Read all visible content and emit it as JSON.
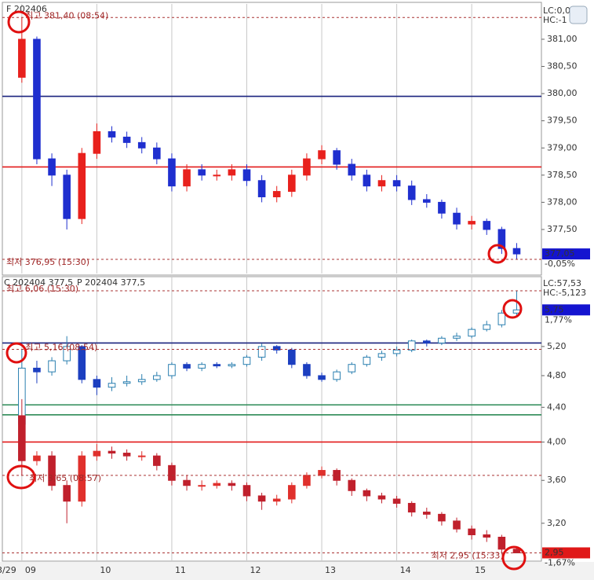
{
  "chart_data": [
    {
      "type": "candlestick",
      "series": [
        {
          "name": "F 202406",
          "color_up": "#e8211d",
          "color_down": "#1f2fcf",
          "open": [
            380.3,
            381.0,
            378.8,
            378.5,
            377.7,
            378.9,
            379.3,
            379.2,
            379.1,
            379.0,
            378.8,
            378.3,
            378.6,
            378.5,
            378.5,
            378.6,
            378.4,
            378.1,
            378.2,
            378.5,
            378.8,
            378.95,
            378.7,
            378.5,
            378.3,
            378.4,
            378.3,
            378.05,
            378.0,
            377.8,
            377.6,
            377.65,
            377.5,
            377.15
          ],
          "high": [
            381.4,
            381.05,
            378.9,
            378.6,
            379.0,
            379.45,
            379.4,
            379.3,
            379.2,
            379.1,
            378.9,
            378.7,
            378.7,
            378.6,
            378.7,
            378.7,
            378.5,
            378.3,
            378.6,
            378.9,
            379.05,
            379.0,
            378.8,
            378.6,
            378.5,
            378.5,
            378.4,
            378.15,
            378.05,
            377.9,
            377.75,
            377.7,
            377.55,
            377.25
          ],
          "low": [
            380.2,
            378.7,
            378.3,
            377.5,
            377.6,
            378.8,
            379.1,
            379.0,
            378.9,
            378.7,
            378.2,
            378.2,
            378.4,
            378.4,
            378.4,
            378.3,
            378.0,
            378.0,
            378.1,
            378.4,
            378.7,
            378.6,
            378.4,
            378.2,
            378.2,
            378.2,
            377.95,
            377.9,
            377.7,
            377.5,
            377.5,
            377.4,
            377.05,
            376.95
          ],
          "values": [
            381.0,
            378.8,
            378.5,
            377.7,
            378.9,
            379.3,
            379.2,
            379.1,
            379.0,
            378.8,
            378.3,
            378.6,
            378.5,
            378.5,
            378.6,
            378.4,
            378.1,
            378.2,
            378.5,
            378.8,
            378.95,
            378.7,
            378.5,
            378.3,
            378.4,
            378.3,
            378.05,
            378.0,
            377.8,
            377.6,
            377.65,
            377.5,
            377.15,
            377.05
          ]
        }
      ],
      "x": [
        9.0,
        9.2,
        9.4,
        9.6,
        9.8,
        10.0,
        10.2,
        10.4,
        10.6,
        10.8,
        11.0,
        11.2,
        11.4,
        11.6,
        11.8,
        12.0,
        12.2,
        12.4,
        12.6,
        12.8,
        13.0,
        13.2,
        13.4,
        13.6,
        13.8,
        14.0,
        14.2,
        14.4,
        14.6,
        14.8,
        15.0,
        15.2,
        15.4,
        15.6
      ],
      "xlim": [
        8.74,
        15.93
      ],
      "ylim": [
        376.69,
        381.65
      ],
      "yticks": [
        {
          "value": 381,
          "label": "381,00"
        },
        {
          "value": 380.5,
          "label": "380,50"
        },
        {
          "value": 380,
          "label": "380,00"
        },
        {
          "value": 379.5,
          "label": "379,50"
        },
        {
          "value": 379,
          "label": "379,00"
        },
        {
          "value": 378.5,
          "label": "378,50"
        },
        {
          "value": 378,
          "label": "378,00"
        },
        {
          "value": 377.5,
          "label": "377,50"
        }
      ],
      "hlines": [
        {
          "value": 379.95,
          "color": "#1a237e"
        },
        {
          "value": 378.65,
          "color": "#e21a1a"
        }
      ],
      "annotations": [
        {
          "text": "최고 381,40 (08:54)",
          "value": 381.4,
          "x": 8.9
        },
        {
          "text": "최저 376,95 (15:30)",
          "value": 376.95,
          "x": 15.5
        }
      ],
      "last": [
        {
          "value": 377.05,
          "label": "377,05",
          "color": "#1414d0",
          "change": {
            "value": -0.05,
            "label": "-0,05%"
          }
        }
      ],
      "stats": [
        {
          "text": "LC:0,0",
          "color": "#d02020"
        },
        {
          "text": "HC:-1",
          "color": "#1a1aa0"
        }
      ]
    },
    {
      "type": "candlestick",
      "ylog": true,
      "series": [
        {
          "name": "C 202404 377,5",
          "color_up": "#2a7fb0",
          "color_down": "#1c3fc0",
          "hollow_up": true,
          "open": [
            4.2,
            4.9,
            4.85,
            5.0,
            5.2,
            4.75,
            4.65,
            4.7,
            4.72,
            4.75,
            4.8,
            4.95,
            4.9,
            4.95,
            4.93,
            4.95,
            5.05,
            5.2,
            5.15,
            4.95,
            4.8,
            4.75,
            4.85,
            4.95,
            5.05,
            5.1,
            5.15,
            5.28,
            5.25,
            5.32,
            5.35,
            5.45,
            5.52,
            5.7
          ],
          "high": [
            5.16,
            5.0,
            5.05,
            5.35,
            5.22,
            4.8,
            4.78,
            4.8,
            4.82,
            4.85,
            4.98,
            4.98,
            4.98,
            4.98,
            4.98,
            5.08,
            5.24,
            5.22,
            5.18,
            4.98,
            4.84,
            4.88,
            4.98,
            5.08,
            5.14,
            5.2,
            5.3,
            5.3,
            5.35,
            5.4,
            5.48,
            5.58,
            5.75,
            6.06
          ],
          "low": [
            3.9,
            4.7,
            4.8,
            4.95,
            4.7,
            4.55,
            4.6,
            4.66,
            4.68,
            4.72,
            4.76,
            4.86,
            4.86,
            4.9,
            4.9,
            4.92,
            5.0,
            5.1,
            4.9,
            4.76,
            4.72,
            4.72,
            4.82,
            4.92,
            5.0,
            5.06,
            5.12,
            5.2,
            5.22,
            5.28,
            5.32,
            5.42,
            5.48,
            5.65
          ],
          "values": [
            4.9,
            4.85,
            5.0,
            5.2,
            4.75,
            4.65,
            4.7,
            4.72,
            4.75,
            4.8,
            4.95,
            4.9,
            4.95,
            4.93,
            4.95,
            5.05,
            5.2,
            5.15,
            4.95,
            4.8,
            4.75,
            4.85,
            4.95,
            5.05,
            5.1,
            5.15,
            5.28,
            5.25,
            5.32,
            5.35,
            5.45,
            5.52,
            5.7,
            5.75
          ]
        },
        {
          "name": "P 202404 377,5",
          "color_up": "#e0302c",
          "color_down": "#c0202c",
          "open": [
            4.3,
            3.8,
            3.85,
            3.55,
            3.4,
            3.85,
            3.9,
            3.88,
            3.85,
            3.85,
            3.75,
            3.6,
            3.55,
            3.55,
            3.57,
            3.55,
            3.45,
            3.4,
            3.42,
            3.55,
            3.65,
            3.7,
            3.6,
            3.5,
            3.45,
            3.42,
            3.38,
            3.3,
            3.28,
            3.22,
            3.15,
            3.1,
            3.08,
            2.98
          ],
          "high": [
            4.5,
            3.9,
            3.9,
            3.6,
            3.9,
            3.98,
            3.95,
            3.92,
            3.9,
            3.88,
            3.78,
            3.65,
            3.6,
            3.6,
            3.6,
            3.58,
            3.48,
            3.46,
            3.58,
            3.68,
            3.74,
            3.72,
            3.62,
            3.52,
            3.48,
            3.45,
            3.4,
            3.34,
            3.3,
            3.25,
            3.18,
            3.14,
            3.1,
            3.0
          ],
          "low": [
            3.65,
            3.75,
            3.5,
            3.2,
            3.35,
            3.8,
            3.82,
            3.8,
            3.8,
            3.7,
            3.55,
            3.5,
            3.5,
            3.52,
            3.5,
            3.4,
            3.32,
            3.36,
            3.38,
            3.52,
            3.62,
            3.55,
            3.45,
            3.4,
            3.38,
            3.34,
            3.26,
            3.24,
            3.18,
            3.12,
            3.06,
            3.04,
            2.95,
            2.95
          ],
          "values": [
            3.8,
            3.85,
            3.55,
            3.4,
            3.85,
            3.9,
            3.88,
            3.85,
            3.85,
            3.75,
            3.6,
            3.55,
            3.55,
            3.57,
            3.55,
            3.45,
            3.4,
            3.42,
            3.55,
            3.65,
            3.7,
            3.6,
            3.5,
            3.45,
            3.42,
            3.38,
            3.3,
            3.28,
            3.22,
            3.15,
            3.1,
            3.08,
            2.98,
            2.95
          ]
        }
      ],
      "x": [
        9.0,
        9.2,
        9.4,
        9.6,
        9.8,
        10.0,
        10.2,
        10.4,
        10.6,
        10.8,
        11.0,
        11.2,
        11.4,
        11.6,
        11.8,
        12.0,
        12.2,
        12.4,
        12.6,
        12.8,
        13.0,
        13.2,
        13.4,
        13.6,
        13.8,
        14.0,
        14.2,
        14.4,
        14.6,
        14.8,
        15.0,
        15.2,
        15.4,
        15.6
      ],
      "xlim": [
        8.74,
        15.93
      ],
      "xticks": [
        {
          "value": 9,
          "label": "09"
        },
        10,
        11,
        12,
        13,
        14,
        15
      ],
      "date_label": "3/29",
      "ylim": [
        2.89,
        6.3
      ],
      "yticks": [
        {
          "value": 5.2,
          "label": "5,20"
        },
        {
          "value": 4.8,
          "label": "4,80"
        },
        {
          "value": 4.4,
          "label": "4,40"
        },
        {
          "value": 4,
          "label": "4,00"
        },
        {
          "value": 3.6,
          "label": "3,60"
        },
        {
          "value": 3.2,
          "label": "3,20"
        }
      ],
      "hlines": [
        {
          "value": 5.25,
          "color": "#1a237e"
        },
        {
          "value": 4.43,
          "color": "#2e8b57"
        },
        {
          "value": 4.31,
          "color": "#2e8b57"
        },
        {
          "value": 4.0,
          "color": "#e21a1a"
        }
      ],
      "annotations": [
        {
          "text": "최고 6,06 (15:30)",
          "value": 6.06,
          "x": 15.5
        },
        {
          "text": "최고 5,16 (08:54)",
          "value": 5.16,
          "x": 8.9
        },
        {
          "text": "최저 3,65 (08:57)",
          "value": 3.65,
          "x": 8.95
        },
        {
          "text": "최저 2,95 (15:33)",
          "value": 2.95,
          "x": 15.55
        }
      ],
      "last": [
        {
          "value": 5.75,
          "label": "5,75",
          "color": "#1414d0",
          "change": {
            "value": 1.77,
            "label": "1,77%"
          }
        },
        {
          "value": 2.95,
          "label": "2,95",
          "color": "#e01818",
          "change": {
            "value": -1.67,
            "label": "-1,67%"
          }
        }
      ],
      "stats": [
        {
          "text": "LC:57,53",
          "color": "#1a1aa0"
        },
        {
          "text": "HC:-5,123",
          "color": "#1a1aa0"
        }
      ]
    }
  ]
}
